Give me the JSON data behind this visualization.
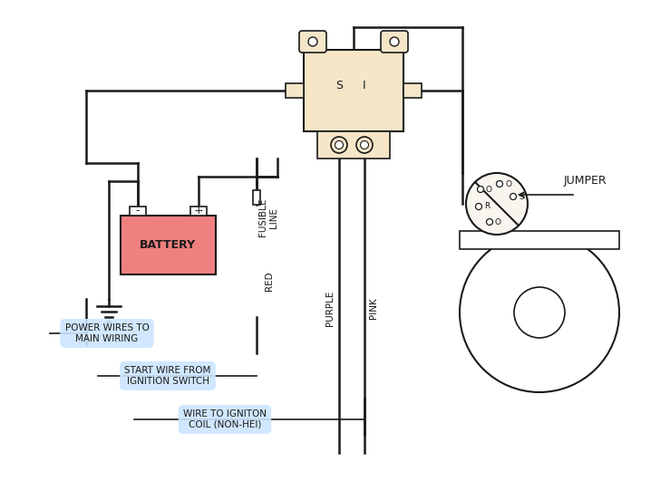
{
  "bg_color": "#ffffff",
  "line_color": "#1a1a1a",
  "relay_color": "#f5e6c8",
  "battery_fill": "#f08080",
  "label_bg": "#cce5ff",
  "starter_color": "#f8f5ee",
  "wire_lw": 1.8,
  "labels": {
    "fusible_line": "FUSIBLE\nLINE",
    "red": "RED",
    "purple": "PURPLE",
    "pink": "PINK",
    "battery": "BATTERY",
    "jumper": "JUMPER",
    "power_wires": "POWER WIRES TO\nMAIN WIRING",
    "start_wire": "START WIRE FROM\nIGNITION SWITCH",
    "wire_coil": "WIRE TO IGNITON\nCOIL (NON-HEI)",
    "S_label": "S",
    "I_label": "I",
    "O_label": "O",
    "R_label": "R",
    "Ss_label": "S",
    "minus": "-",
    "plus": "+"
  }
}
